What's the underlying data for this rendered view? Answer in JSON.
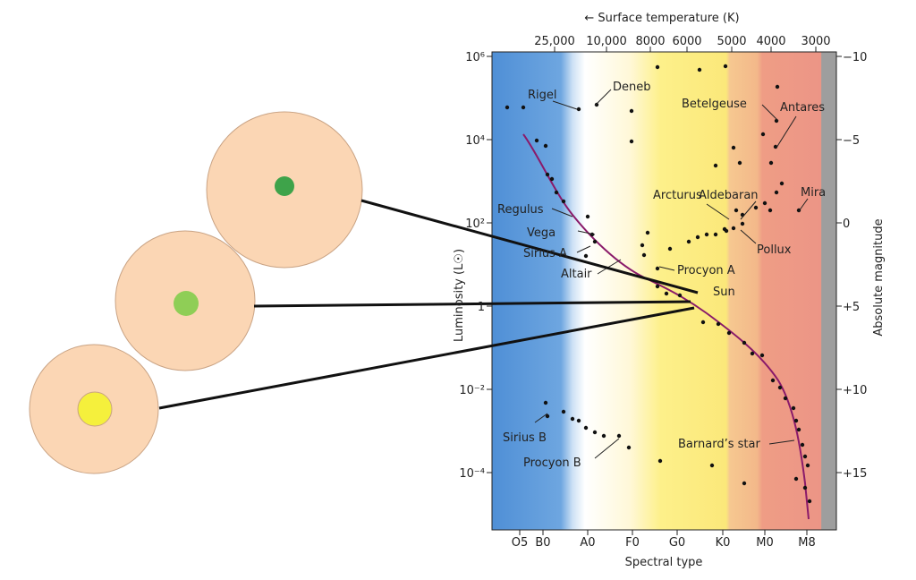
{
  "diagram": {
    "top_axis": {
      "title": "← Surface temperature (K)",
      "ticks": [
        "25,000",
        "10,000",
        "8000",
        "6000",
        "5000",
        "4000",
        "3000"
      ]
    },
    "bottom_axis": {
      "title": "Spectral type",
      "ticks": [
        "O5",
        "B0",
        "A0",
        "F0",
        "G0",
        "K0",
        "M0",
        "M8"
      ]
    },
    "left_axis": {
      "title": "Luminosity (L☉)",
      "ticks": [
        "10⁶",
        "10⁴",
        "10²",
        "1",
        "10⁻²",
        "10⁻⁴"
      ]
    },
    "right_axis": {
      "title": "Absolute magnitude",
      "ticks": [
        "−10",
        "−5",
        "0",
        "+5",
        "+10",
        "+15"
      ]
    },
    "stars": [
      "Rigel",
      "Deneb",
      "Betelgeuse",
      "Antares",
      "Regulus",
      "Vega",
      "Sirius A",
      "Altair",
      "Arcturus",
      "Aldebaran",
      "Mira",
      "Pollux",
      "Procyon A",
      "Sun",
      "Sirius B",
      "Procyon B",
      "Barnard’s star"
    ]
  }
}
